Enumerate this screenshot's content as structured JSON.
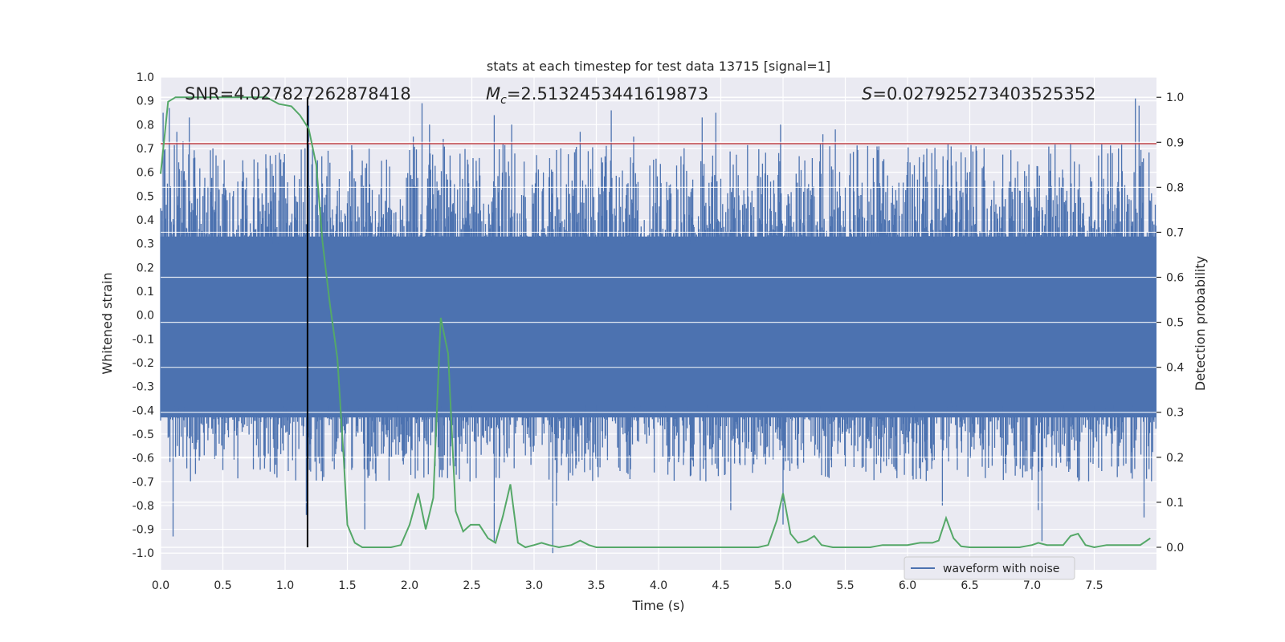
{
  "chart_data": {
    "type": "line",
    "title": "stats at each timestep for test data 13715 [signal=1]",
    "xlabel": "Time (s)",
    "ylabel": "Whitened strain",
    "y2label": "Detection probability",
    "xlim": [
      0.0,
      8.0
    ],
    "ylim": [
      -1.07,
      1.0
    ],
    "y2lim": [
      -0.05,
      1.045
    ],
    "xticks": [
      "0.0",
      "0.5",
      "1.0",
      "1.5",
      "2.0",
      "2.5",
      "3.0",
      "3.5",
      "4.0",
      "4.5",
      "5.0",
      "5.5",
      "6.0",
      "6.5",
      "7.0",
      "7.5"
    ],
    "yticks": [
      "1.0",
      "0.9",
      "0.8",
      "0.7",
      "0.6",
      "0.5",
      "0.4",
      "0.3",
      "0.2",
      "0.1",
      "0.0",
      "-0.1",
      "-0.2",
      "-0.3",
      "-0.4",
      "-0.5",
      "-0.6",
      "-0.7",
      "-0.8",
      "-0.9",
      "-1.0"
    ],
    "y2ticks": [
      "1.0",
      "0.9",
      "0.8",
      "0.7",
      "0.6",
      "0.5",
      "0.4",
      "0.3",
      "0.2",
      "0.1",
      "0.0"
    ],
    "annotations": {
      "snr": "SNR=4.027827262878418",
      "mc_prefix": "M",
      "mc_sub": "c",
      "mc_value": "=2.5132453441619873",
      "s_prefix": "S",
      "s_value": "=0.027925273403525352"
    },
    "threshold": 0.72,
    "vline_time": 1.18,
    "legend": {
      "label": "waveform with noise",
      "placement": "lower-right"
    },
    "series": [
      {
        "name": "waveform with noise",
        "color": "#4c72b0",
        "description": "whitened strain time series, ~8 s of noisy data",
        "spikes": [
          {
            "t": 0.02,
            "v": 0.85
          },
          {
            "t": 0.07,
            "v": 0.87
          },
          {
            "t": 0.1,
            "v": -0.93
          },
          {
            "t": 0.13,
            "v": 0.77
          },
          {
            "t": 0.18,
            "v": 0.73
          },
          {
            "t": 0.23,
            "v": 0.83
          },
          {
            "t": 0.24,
            "v": -0.65
          },
          {
            "t": 0.42,
            "v": 0.7
          },
          {
            "t": 0.66,
            "v": 0.65
          },
          {
            "t": 0.88,
            "v": 0.67
          },
          {
            "t": 1.17,
            "v": -0.84
          },
          {
            "t": 1.19,
            "v": 0.88
          },
          {
            "t": 1.36,
            "v": 0.64
          },
          {
            "t": 1.64,
            "v": -0.9
          },
          {
            "t": 2.03,
            "v": 0.75
          },
          {
            "t": 2.1,
            "v": 0.89
          },
          {
            "t": 2.16,
            "v": 0.8
          },
          {
            "t": 2.27,
            "v": 0.74
          },
          {
            "t": 2.68,
            "v": 0.84
          },
          {
            "t": 2.68,
            "v": -0.95
          },
          {
            "t": 2.82,
            "v": 0.8
          },
          {
            "t": 3.15,
            "v": -1.0
          },
          {
            "t": 3.18,
            "v": -0.8
          },
          {
            "t": 3.37,
            "v": 0.77
          },
          {
            "t": 3.62,
            "v": 0.86
          },
          {
            "t": 3.8,
            "v": 0.75
          },
          {
            "t": 4.35,
            "v": 0.83
          },
          {
            "t": 4.46,
            "v": 0.85
          },
          {
            "t": 4.58,
            "v": -0.82
          },
          {
            "t": 4.98,
            "v": 0.8
          },
          {
            "t": 5.0,
            "v": -0.88
          },
          {
            "t": 5.32,
            "v": 0.76
          },
          {
            "t": 5.42,
            "v": 0.78
          },
          {
            "t": 6.28,
            "v": -0.8
          },
          {
            "t": 7.05,
            "v": -0.82
          },
          {
            "t": 7.08,
            "v": -0.95
          },
          {
            "t": 7.31,
            "v": 0.72
          },
          {
            "t": 7.83,
            "v": 0.91
          },
          {
            "t": 7.86,
            "v": 0.88
          },
          {
            "t": 7.9,
            "v": -0.85
          }
        ]
      },
      {
        "name": "detection probability",
        "color": "#55a868",
        "axis": "right",
        "x": [
          0.0,
          0.03,
          0.06,
          0.12,
          0.2,
          0.4,
          0.6,
          0.85,
          0.95,
          1.05,
          1.12,
          1.19,
          1.25,
          1.3,
          1.36,
          1.42,
          1.47,
          1.5,
          1.56,
          1.62,
          1.75,
          1.85,
          1.93,
          2.0,
          2.07,
          2.13,
          2.19,
          2.25,
          2.31,
          2.37,
          2.43,
          2.49,
          2.56,
          2.63,
          2.69,
          2.75,
          2.81,
          2.87,
          2.93,
          3.0,
          3.06,
          3.12,
          3.2,
          3.3,
          3.37,
          3.44,
          3.5,
          3.6,
          3.7,
          3.8,
          4.0,
          4.2,
          4.4,
          4.6,
          4.8,
          4.88,
          4.95,
          5.0,
          5.06,
          5.12,
          5.19,
          5.25,
          5.31,
          5.4,
          5.6,
          5.7,
          5.8,
          5.9,
          6.0,
          6.1,
          6.15,
          6.2,
          6.25,
          6.31,
          6.37,
          6.43,
          6.5,
          6.6,
          6.8,
          6.9,
          7.0,
          7.05,
          7.12,
          7.2,
          7.25,
          7.31,
          7.37,
          7.43,
          7.5,
          7.6,
          7.7,
          7.8,
          7.87,
          7.95
        ],
        "values": [
          0.83,
          0.91,
          0.99,
          1.0,
          1.0,
          1.0,
          1.0,
          1.0,
          0.985,
          0.98,
          0.96,
          0.93,
          0.85,
          0.68,
          0.54,
          0.42,
          0.2,
          0.05,
          0.01,
          0.0,
          0.0,
          0.0,
          0.005,
          0.05,
          0.12,
          0.04,
          0.11,
          0.51,
          0.43,
          0.08,
          0.035,
          0.05,
          0.05,
          0.02,
          0.01,
          0.07,
          0.14,
          0.01,
          0.0,
          0.005,
          0.01,
          0.005,
          0.0,
          0.005,
          0.015,
          0.005,
          0.0,
          0.0,
          0.0,
          0.0,
          0.0,
          0.0,
          0.0,
          0.0,
          0.0,
          0.005,
          0.06,
          0.12,
          0.03,
          0.01,
          0.015,
          0.025,
          0.005,
          0.0,
          0.0,
          0.0,
          0.005,
          0.005,
          0.005,
          0.01,
          0.01,
          0.01,
          0.015,
          0.065,
          0.02,
          0.002,
          0.0,
          0.0,
          0.0,
          0.0,
          0.005,
          0.01,
          0.005,
          0.005,
          0.005,
          0.025,
          0.03,
          0.005,
          0.0,
          0.005,
          0.005,
          0.005,
          0.005,
          0.02
        ]
      }
    ]
  },
  "colors": {
    "background": "#eaeaf2",
    "grid": "#ffffff",
    "waveform": "#4c72b0",
    "probability": "#55a868",
    "threshold": "#c44e52",
    "marker": "#000000"
  }
}
